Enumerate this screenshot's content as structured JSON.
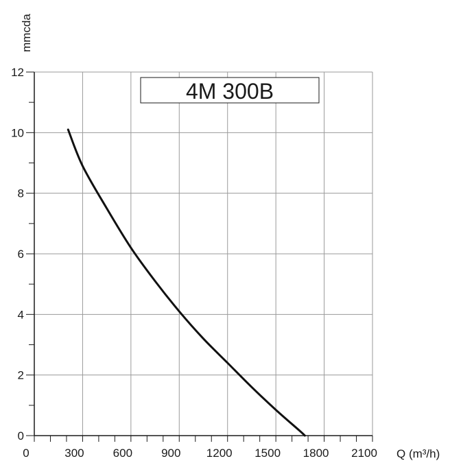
{
  "chart_data": {
    "type": "line",
    "title": "4M 300B",
    "ylabel": "mmcda",
    "xlabel": "Q (m³/h)",
    "xlim": [
      0,
      2100
    ],
    "ylim": [
      0,
      12
    ],
    "x_ticks": [
      0,
      300,
      600,
      900,
      1200,
      1500,
      1800,
      2100
    ],
    "y_ticks": [
      0,
      2,
      4,
      6,
      8,
      10,
      12
    ],
    "x_minor_step": 100,
    "y_minor_step": 1,
    "grid": true,
    "series": [
      {
        "x": [
          210,
          300,
          450,
          600,
          750,
          900,
          1050,
          1200,
          1350,
          1500,
          1650,
          1680
        ],
        "y": [
          10.1,
          8.9,
          7.5,
          6.2,
          5.1,
          4.1,
          3.2,
          2.4,
          1.6,
          0.85,
          0.15,
          0.0
        ]
      }
    ]
  },
  "colors": {
    "grid": "#9a9a9a",
    "axis": "#1a1a1a",
    "curve": "#111111"
  }
}
